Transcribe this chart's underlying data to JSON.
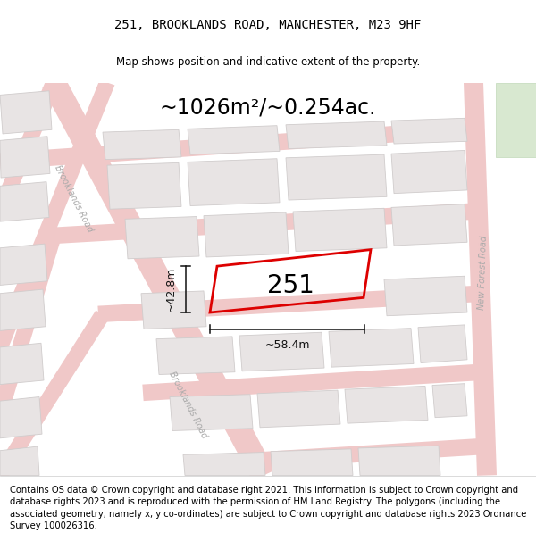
{
  "title_line1": "251, BROOKLANDS ROAD, MANCHESTER, M23 9HF",
  "title_line2": "Map shows position and indicative extent of the property.",
  "area_text": "~1026m²/~0.254ac.",
  "label_251": "251",
  "dim_height": "~42.8m",
  "dim_width": "~58.4m",
  "footer_text": "Contains OS data © Crown copyright and database right 2021. This information is subject to Crown copyright and database rights 2023 and is reproduced with the permission of HM Land Registry. The polygons (including the associated geometry, namely x, y co-ordinates) are subject to Crown copyright and database rights 2023 Ordnance Survey 100026316.",
  "map_bg": "#f5f0f0",
  "road_fill": "#f0c8c8",
  "road_line": "#e8b8b8",
  "block_fill": "#e8e4e4",
  "block_edge": "#d0cccc",
  "green_fill": "#d8e8d0",
  "green_edge": "#c0d8b8",
  "prop_edge": "#dd0000",
  "dim_color": "#111111",
  "label_color": "#333333",
  "road_label_color": "#aaaaaa",
  "title_fs": 10,
  "subtitle_fs": 8.5,
  "area_fs": 17,
  "prop_fs": 20,
  "dim_fs": 9,
  "footer_fs": 7.2,
  "road_label_fs": 7
}
